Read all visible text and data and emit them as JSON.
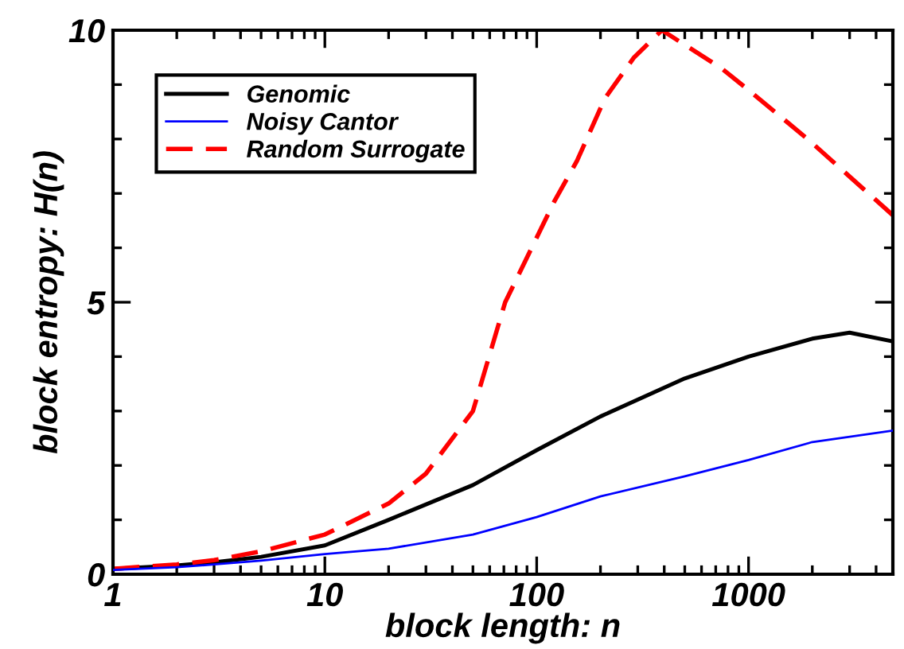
{
  "chart_data": {
    "type": "line",
    "xlabel": "block length: n",
    "ylabel": "block entropy: H(n)",
    "log": "x",
    "xlim": [
      1,
      4800
    ],
    "ylim": [
      0,
      10
    ],
    "xticks": [
      1,
      10,
      100,
      1000
    ],
    "yticks": [
      0,
      5,
      10
    ],
    "grid": false,
    "legend": "top left",
    "marker": "none",
    "series": [
      {
        "name": "Genomic",
        "color": "#000000",
        "line_style": "solid",
        "x": [
          1,
          2,
          3,
          5,
          10,
          20,
          50,
          100,
          200,
          500,
          1000,
          2000,
          3000,
          4800
        ],
        "values": [
          0.1,
          0.16,
          0.22,
          0.32,
          0.53,
          1.0,
          1.64,
          2.28,
          2.9,
          3.6,
          4.0,
          4.33,
          4.44,
          4.28
        ]
      },
      {
        "name": "Noisy Cantor",
        "color": "#0000ff",
        "line_style": "solid",
        "x": [
          1,
          2,
          3,
          5,
          10,
          20,
          50,
          100,
          200,
          500,
          1000,
          2000,
          4800
        ],
        "values": [
          0.08,
          0.13,
          0.18,
          0.25,
          0.37,
          0.47,
          0.73,
          1.05,
          1.43,
          1.8,
          2.1,
          2.43,
          2.64
        ]
      },
      {
        "name": "Random Surrogate",
        "color": "#ff0000",
        "line_style": "dashed",
        "x": [
          1,
          2,
          3,
          5,
          10,
          20,
          30,
          50,
          71,
          121,
          155,
          210,
          288,
          390,
          745,
          1000,
          1900,
          4800
        ],
        "values": [
          0.1,
          0.18,
          0.26,
          0.42,
          0.73,
          1.3,
          1.85,
          3.0,
          5.0,
          6.85,
          7.6,
          8.75,
          9.5,
          10.0,
          9.3,
          8.9,
          8.0,
          6.6
        ]
      }
    ]
  }
}
